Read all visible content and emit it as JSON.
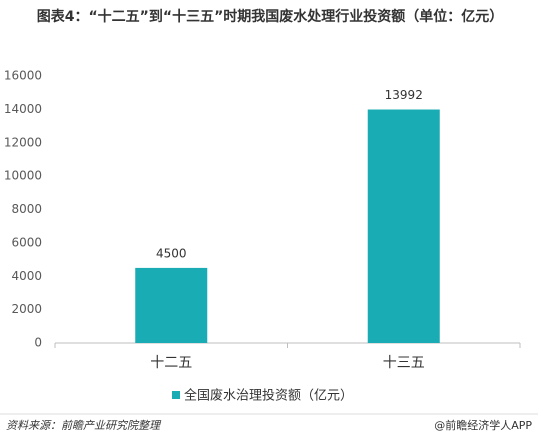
{
  "chart_data": {
    "type": "bar",
    "title": "图表4：“十二五”到“十三五”时期我国废水处理行业投资额（单位：亿元）",
    "categories": [
      "十二五",
      "十三五"
    ],
    "series": [
      {
        "name": "全国废水治理投资额（亿元）",
        "color": "#1aacb4",
        "values": [
          4500,
          13992
        ]
      }
    ],
    "ylim": [
      0,
      16000
    ],
    "yticks": [
      0,
      2000,
      4000,
      6000,
      8000,
      10000,
      12000,
      14000,
      16000
    ],
    "grid": false,
    "legend": "bottom",
    "source": "资料来源：前瞻产业研究院整理",
    "credit": "@前瞻经济学人APP"
  }
}
